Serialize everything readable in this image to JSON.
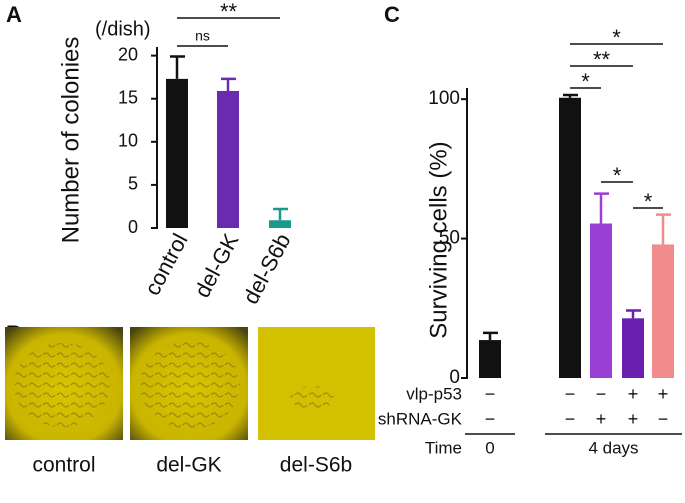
{
  "panel_labels": [
    "A",
    "B",
    "C"
  ],
  "chart_data": [
    {
      "type": "bar",
      "y_label": "Number of colonies",
      "y_unit": "(/dish)",
      "categories": [
        "control",
        "del-GK",
        "del-S6b"
      ],
      "values": [
        17.3,
        15.9,
        0.9
      ],
      "errors": [
        2.6,
        1.4,
        1.3
      ],
      "colors": [
        "#111111",
        "#6a2bb0",
        "#1a9a8a"
      ],
      "ylim": [
        0,
        21
      ],
      "yticks": [
        0,
        5,
        10,
        15,
        20
      ],
      "annotations": [
        "ns",
        "**"
      ]
    },
    {
      "type": "bar",
      "y_label": "Surviving cells (%)",
      "categories": [
        null,
        null,
        null,
        null,
        null
      ],
      "values": [
        13.6,
        100.5,
        55.4,
        21.4,
        47.9
      ],
      "errors": [
        2.6,
        1.0,
        10.7,
        2.8,
        10.7
      ],
      "colors": [
        "#111111",
        "#111111",
        "#9b3fd4",
        "#6a1fb0",
        "#f08c8c"
      ],
      "ylim": [
        0,
        104
      ],
      "yticks": [
        0,
        50,
        100
      ],
      "annotations": [
        "*",
        "**",
        "*",
        "*",
        "*"
      ],
      "conditions": [
        {
          "name": "vlp-p53",
          "values": [
            "−",
            "−",
            "−",
            "+",
            "+"
          ]
        },
        {
          "name": "shRNA-GK",
          "values": [
            "−",
            "−",
            "+",
            "+",
            "−"
          ]
        }
      ],
      "time": {
        "name": "Time",
        "groups": [
          "0",
          "4 days"
        ]
      }
    }
  ],
  "images": [
    "control",
    "del-GK",
    "del-S6b"
  ]
}
